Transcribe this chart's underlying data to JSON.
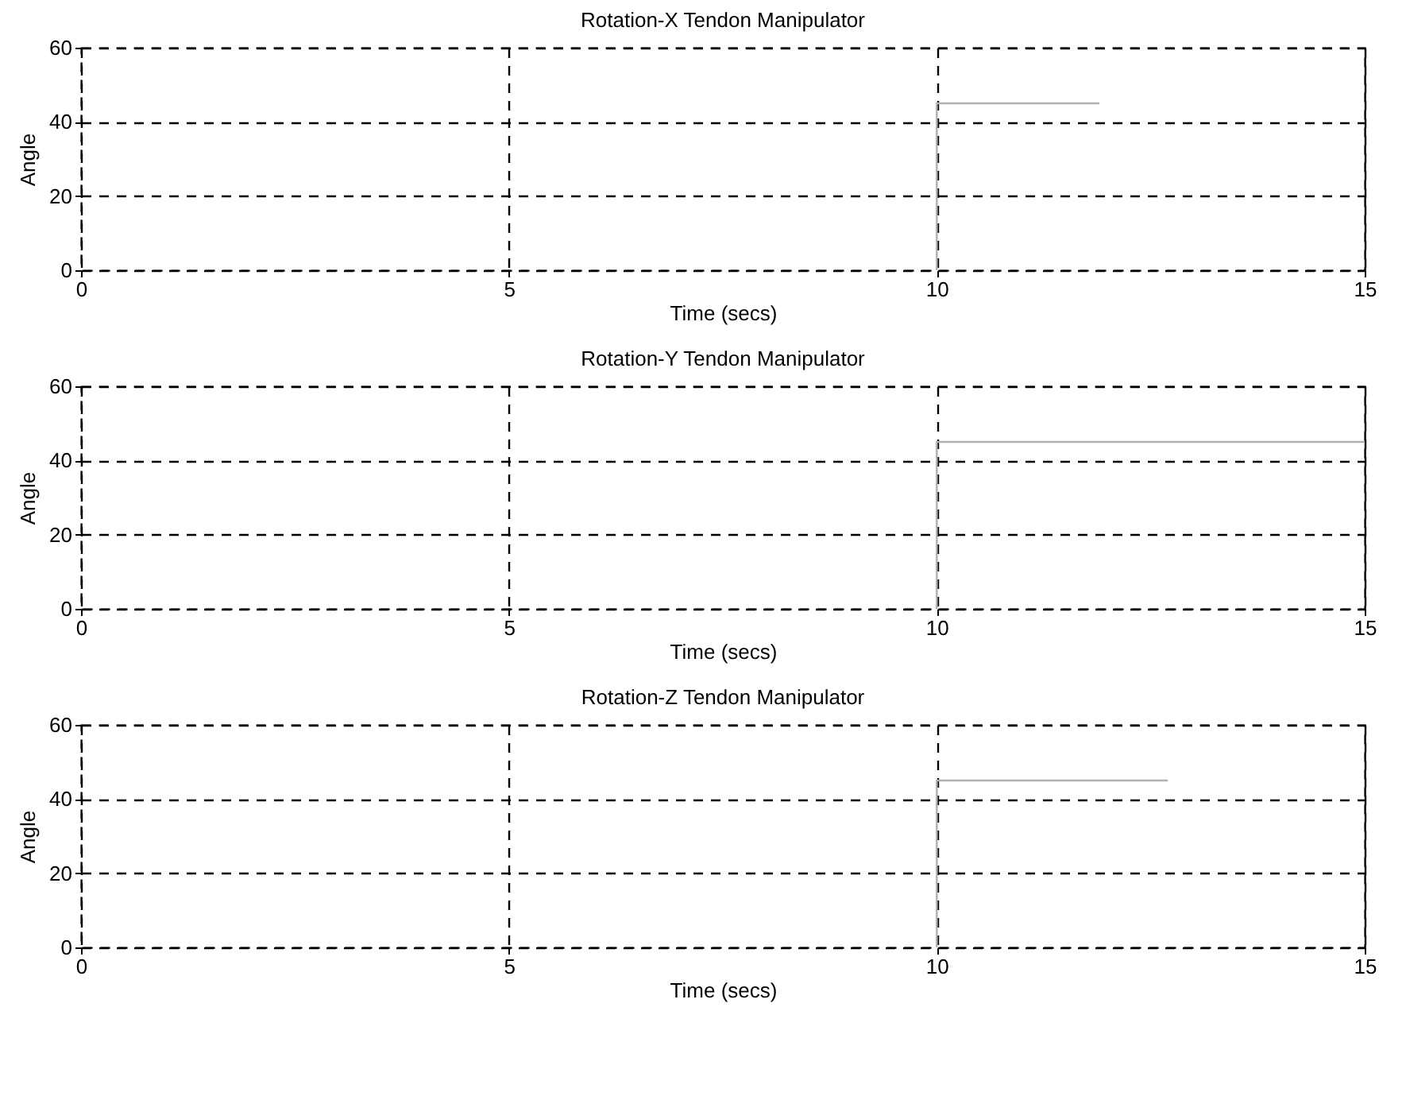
{
  "chart_data": [
    {
      "type": "line",
      "title": "Rotation-X Tendon Manipulator",
      "xlabel": "Time (secs)",
      "ylabel": "Angle",
      "xlim": [
        0,
        15
      ],
      "xticks": [
        0,
        5,
        10,
        15
      ],
      "ylim": [
        0,
        60
      ],
      "yticks": [
        0,
        20,
        40,
        60
      ],
      "grid": true,
      "line_style": "solid",
      "series": [
        {
          "color": "#b0b0b0",
          "x": [
            10,
            10,
            11.9
          ],
          "values": [
            0,
            45,
            45
          ]
        }
      ]
    },
    {
      "type": "line",
      "title": "Rotation-Y Tendon Manipulator",
      "xlabel": "Time (secs)",
      "ylabel": "Angle",
      "xlim": [
        0,
        15
      ],
      "xticks": [
        0,
        5,
        10,
        15
      ],
      "ylim": [
        0,
        60
      ],
      "yticks": [
        0,
        20,
        40,
        60
      ],
      "grid": true,
      "line_style": "solid",
      "series": [
        {
          "color": "#b0b0b0",
          "x": [
            10,
            10,
            15
          ],
          "values": [
            0,
            45,
            45
          ]
        }
      ]
    },
    {
      "type": "line",
      "title": "Rotation-Z Tendon Manipulator",
      "xlabel": "Time (secs)",
      "ylabel": "Angle",
      "xlim": [
        0,
        15
      ],
      "xticks": [
        0,
        5,
        10,
        15
      ],
      "ylim": [
        0,
        60
      ],
      "yticks": [
        0,
        20,
        40,
        60
      ],
      "grid": true,
      "line_style": "solid",
      "series": [
        {
          "color": "#b0b0b0",
          "x": [
            10,
            10,
            12.7
          ],
          "values": [
            0,
            45,
            45
          ]
        }
      ]
    }
  ]
}
